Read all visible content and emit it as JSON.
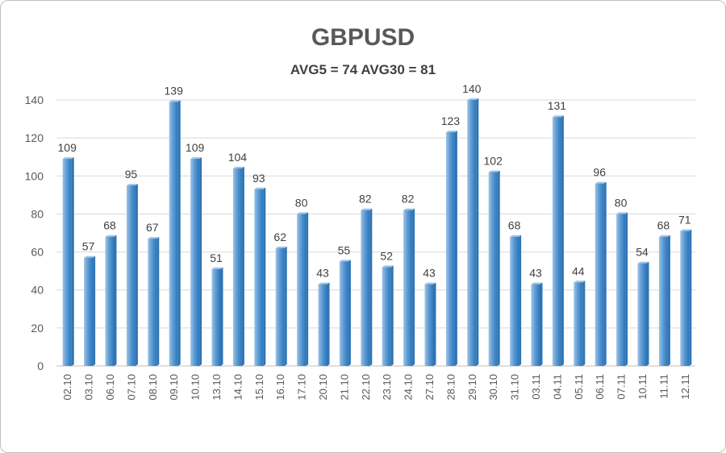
{
  "chart_data": {
    "type": "bar",
    "title": "GBPUSD",
    "subtitle": "AVG5 = 74 AVG30 = 81",
    "xlabel": "",
    "ylabel": "",
    "ylim": [
      0,
      140
    ],
    "yticks": [
      0,
      20,
      40,
      60,
      80,
      100,
      120,
      140
    ],
    "grid": true,
    "legend": "none",
    "categories": [
      "02.10",
      "03.10",
      "06.10",
      "07.10",
      "08.10",
      "09.10",
      "10.10",
      "13.10",
      "14.10",
      "15.10",
      "16.10",
      "17.10",
      "20.10",
      "21.10",
      "22.10",
      "23.10",
      "24.10",
      "27.10",
      "28.10",
      "29.10",
      "30.10",
      "31.10",
      "03.11",
      "04.11",
      "05.11",
      "06.11",
      "07.11",
      "10.11",
      "11.11",
      "12.11"
    ],
    "values": [
      109,
      57,
      68,
      95,
      67,
      139,
      109,
      51,
      104,
      93,
      62,
      80,
      43,
      55,
      82,
      52,
      82,
      43,
      123,
      140,
      102,
      68,
      43,
      131,
      44,
      96,
      80,
      54,
      68,
      71
    ],
    "colors": {
      "bar": "#5b9bd5",
      "bar_dark": "#2e75b6",
      "bar_light": "#9dc3e6",
      "grid": "#d9d9d9",
      "axis": "#bfbfbf"
    }
  }
}
